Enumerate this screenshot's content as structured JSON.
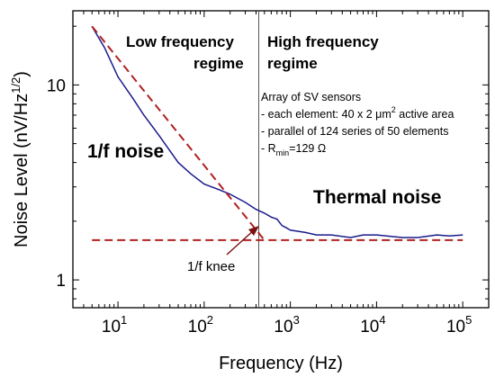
{
  "chart_data": {
    "type": "line",
    "x_scale": "log",
    "y_scale": "log",
    "xlim": [
      3,
      200000
    ],
    "ylim": [
      0.72,
      24
    ],
    "xlabel": "Frequency (Hz)",
    "ylabel_main": "Noise Level (nV/Hz",
    "ylabel_sup": "1/2",
    "ylabel_tail": ")",
    "x_ticks": [
      {
        "value": 10,
        "base": "10",
        "exp": "1"
      },
      {
        "value": 100,
        "base": "10",
        "exp": "2"
      },
      {
        "value": 1000,
        "base": "10",
        "exp": "3"
      },
      {
        "value": 10000,
        "base": "10",
        "exp": "4"
      },
      {
        "value": 100000,
        "base": "10",
        "exp": "5"
      }
    ],
    "y_ticks": [
      {
        "value": 1,
        "label": "1"
      },
      {
        "value": 10,
        "label": "10"
      }
    ],
    "grid": false,
    "series": [
      {
        "color": "#1a1a8c",
        "x": [
          5,
          7,
          10,
          15,
          20,
          30,
          50,
          70,
          100,
          150,
          200,
          300,
          400,
          500,
          600,
          700,
          800,
          900,
          1000,
          1500,
          2000,
          3000,
          5000,
          7000,
          10000,
          20000,
          30000,
          50000,
          70000,
          100000
        ],
        "y": [
          20,
          15.5,
          11,
          8.5,
          7,
          5.5,
          4,
          3.5,
          3.1,
          2.9,
          2.75,
          2.5,
          2.3,
          2.2,
          2.1,
          2.05,
          1.9,
          1.85,
          1.8,
          1.75,
          1.7,
          1.7,
          1.65,
          1.7,
          1.7,
          1.65,
          1.65,
          1.7,
          1.68,
          1.7
        ]
      },
      {
        "color": "#b02020",
        "dashed": true,
        "x": [
          5,
          500
        ],
        "y": [
          20,
          1.6
        ]
      },
      {
        "color": "#b02020",
        "dashed": true,
        "x": [
          5,
          100000
        ],
        "y": [
          1.6,
          1.6
        ]
      }
    ],
    "vertical_line": {
      "x": 430,
      "color": "#555555"
    },
    "annotations": {
      "low_regime_line1": "Low frequency",
      "low_regime_line2": "regime",
      "high_regime_line1": "High frequency",
      "high_regime_line2": "regime",
      "one_over_f": "1/f noise",
      "thermal": "Thermal noise",
      "knee": "1/f knee",
      "sensor_title": "Array of SV sensors",
      "sensor_line1_pre": "- each element: 40 x 2 ",
      "sensor_line1_mu": "μm",
      "sensor_line1_sup": "2",
      "sensor_line1_post": " active area",
      "sensor_line2": "- parallel of 124 series of 50 elements",
      "sensor_line3_pre": "- R",
      "sensor_line3_sub": "min",
      "sensor_line3_post": "=129 Ω"
    }
  }
}
